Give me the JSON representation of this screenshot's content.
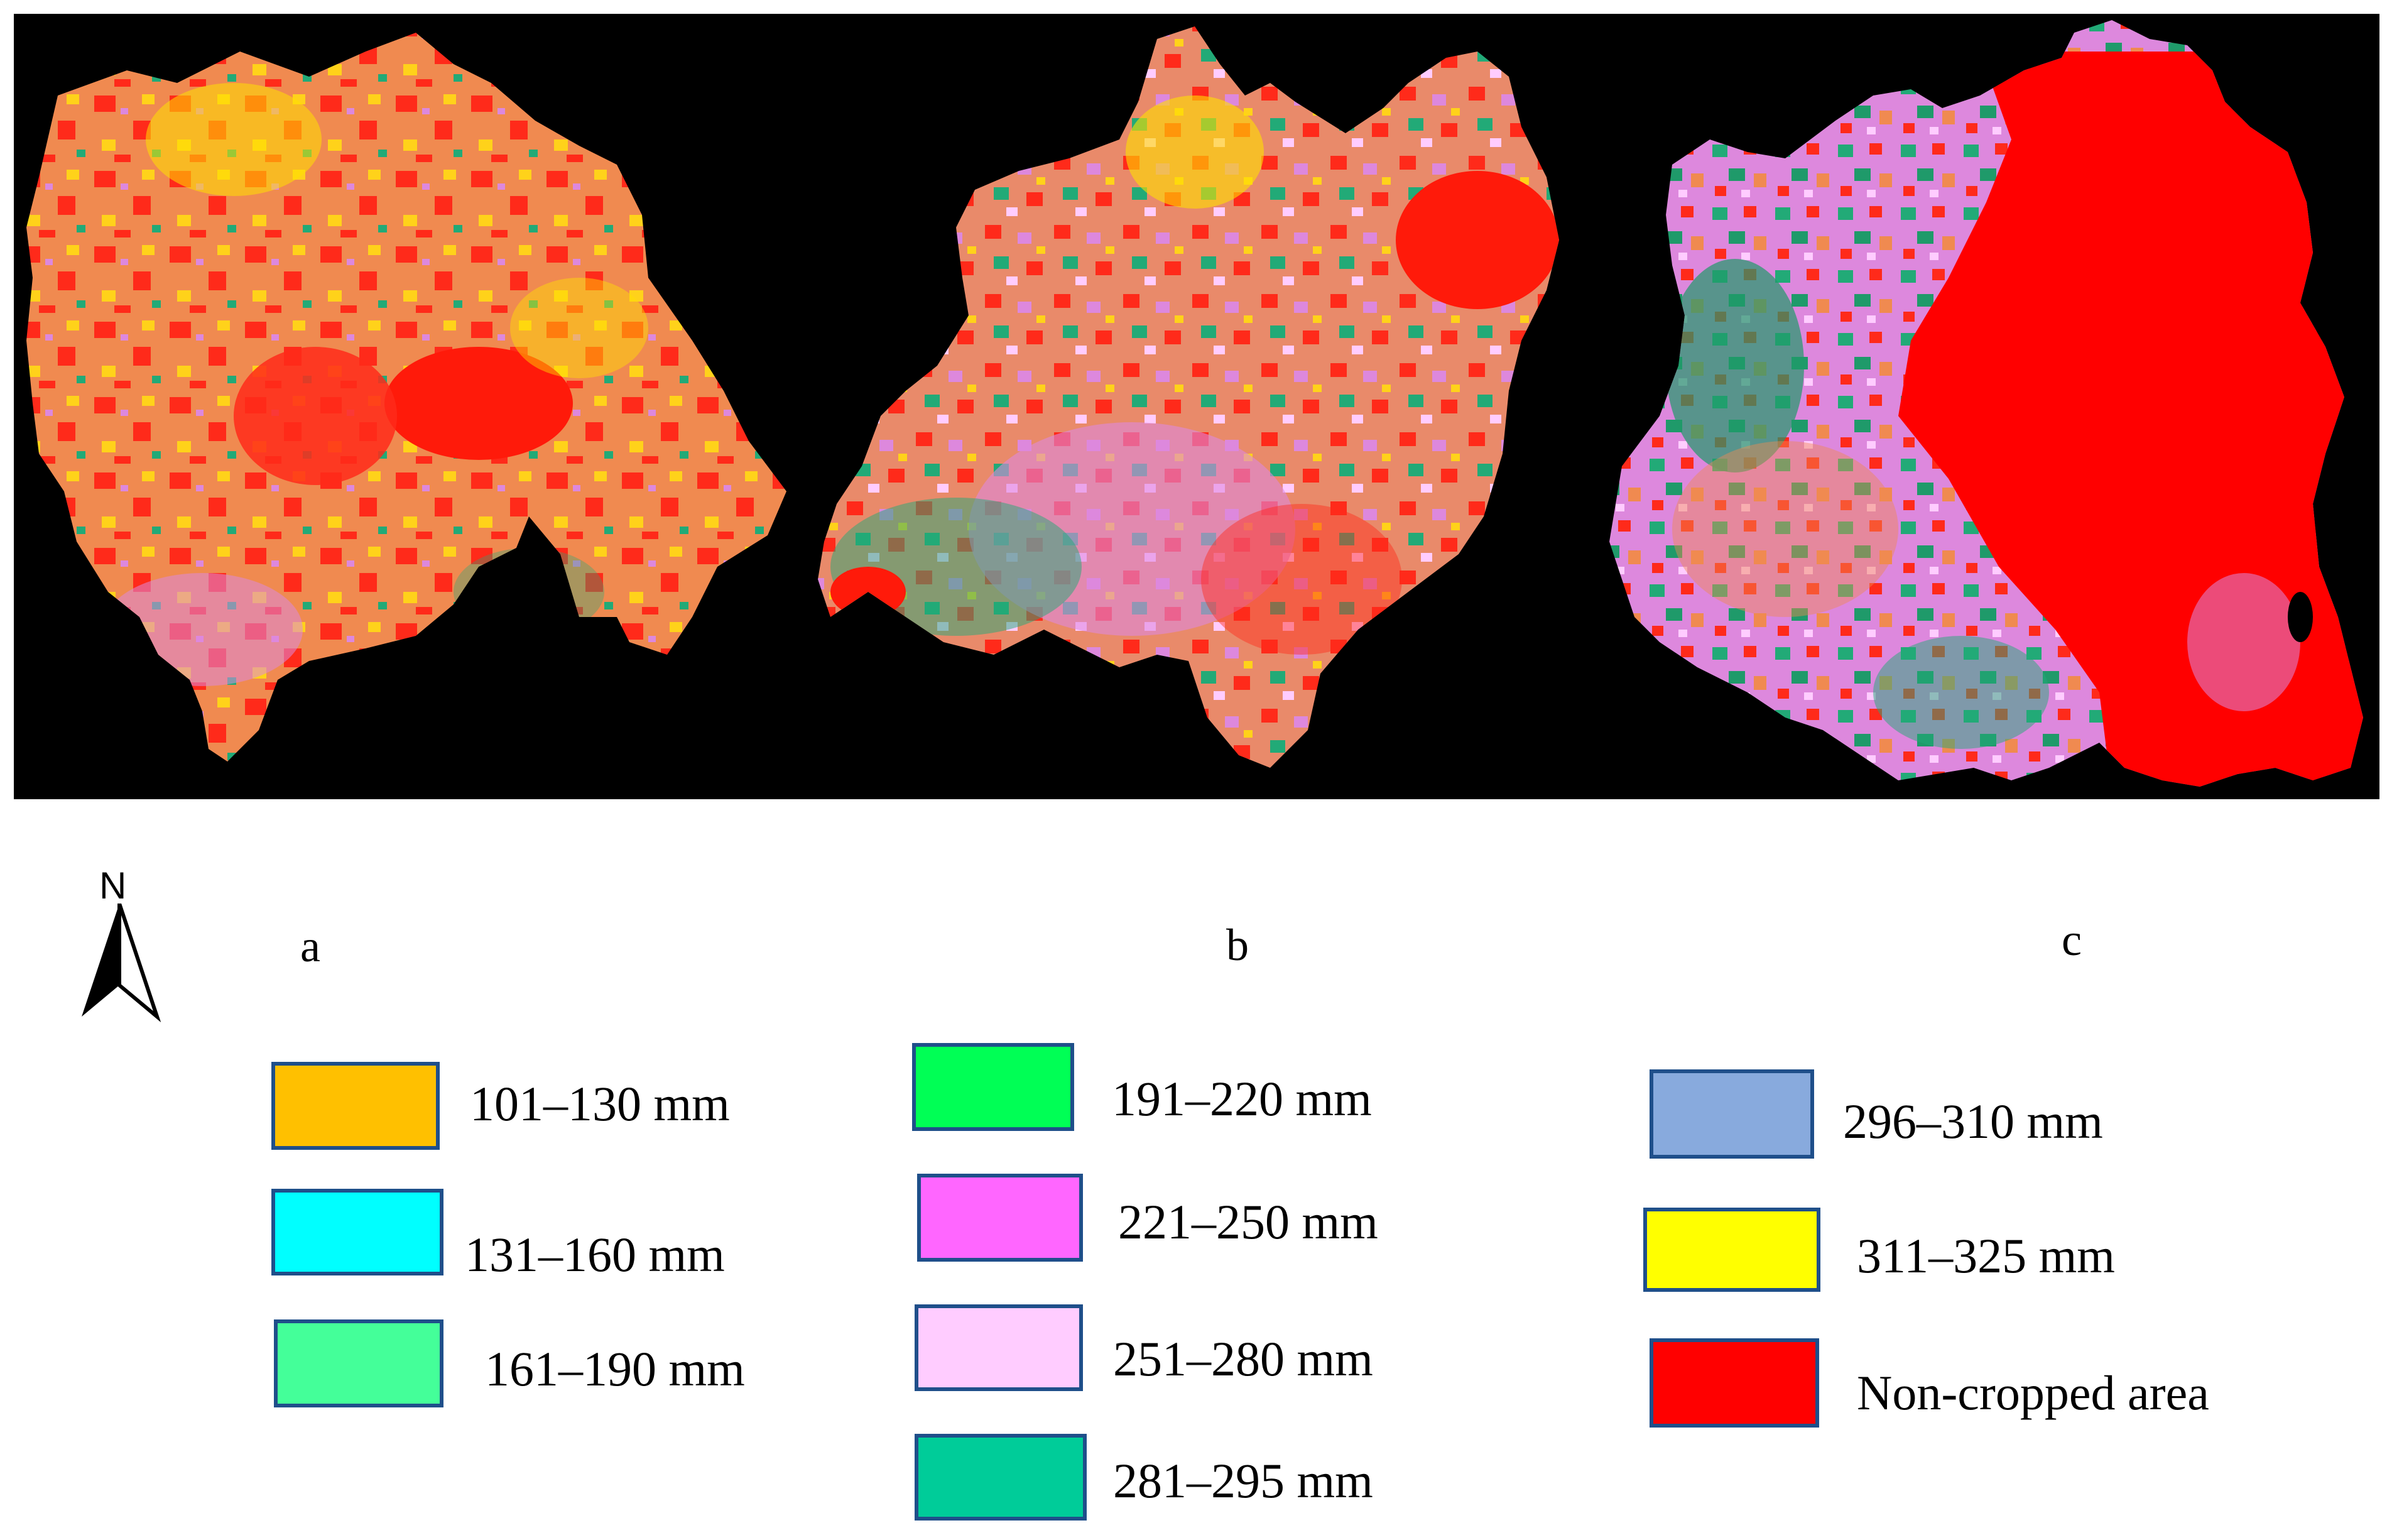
{
  "panels": [
    {
      "letter": "a"
    },
    {
      "letter": "b"
    },
    {
      "letter": "c"
    }
  ],
  "north_label": "N",
  "legend": [
    {
      "label": "101–130 mm",
      "color": "#ffc000"
    },
    {
      "label": "131–160 mm",
      "color": "#00ffff"
    },
    {
      "label": "161–190 mm",
      "color": "#44ff99"
    },
    {
      "label": "191–220 mm",
      "color": "#00ff55"
    },
    {
      "label": "221–250 mm",
      "color": "#ff66ff"
    },
    {
      "label": "251–280 mm",
      "color": "#ffccff"
    },
    {
      "label": "281–295 mm",
      "color": "#00cc99"
    },
    {
      "label": "296–310 mm",
      "color": "#88aadd"
    },
    {
      "label": "311–325 mm",
      "color": "#ffff00"
    },
    {
      "label": "Non-cropped area",
      "color": "#ff0000"
    }
  ],
  "map_colors": {
    "background": "#000000",
    "non_cropped": "#ff0000",
    "orange": "#f08a50",
    "yellow": "#ffee00",
    "pink": "#dd88dd",
    "green": "#22aa77"
  }
}
